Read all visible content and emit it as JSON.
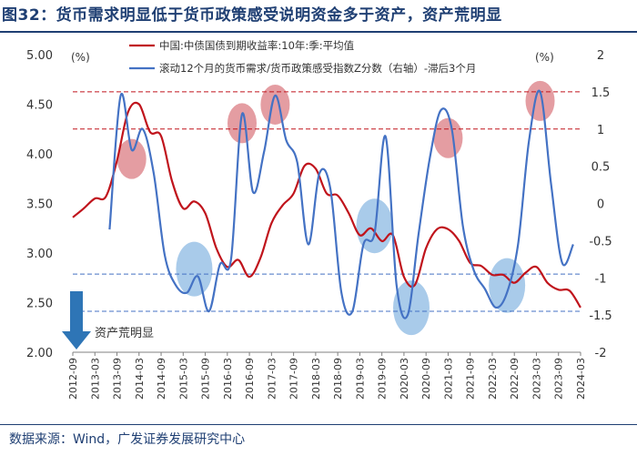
{
  "title": "图32：货币需求明显低于货币政策感受说明资金多于资产，资产荒明显",
  "source": "数据来源：Wind，广发证券发展研究中心",
  "chart_data": {
    "type": "line",
    "unit_left": "(%)",
    "unit_right": "(%)",
    "left_axis": {
      "min": 2.0,
      "max": 5.0,
      "ticks": [
        "2.00",
        "2.50",
        "3.00",
        "3.50",
        "4.00",
        "4.50",
        "5.00"
      ]
    },
    "right_axis": {
      "min": -2,
      "max": 2,
      "ticks": [
        "-2",
        "-1.5",
        "-1",
        "-0.5",
        "0",
        "0.5",
        "1",
        "1.5",
        "2"
      ]
    },
    "x_ticks": [
      "2012-09",
      "2013-03",
      "2013-09",
      "2014-03",
      "2014-09",
      "2015-03",
      "2015-09",
      "2016-03",
      "2016-09",
      "2017-03",
      "2017-09",
      "2018-03",
      "2018-09",
      "2019-03",
      "2019-09",
      "2020-03",
      "2020-09",
      "2021-03",
      "2021-09",
      "2022-03",
      "2022-09",
      "2023-03",
      "2023-09",
      "2024-03"
    ],
    "x_range": [
      "2012-09",
      "2024-03"
    ],
    "annotation": "资产荒明显",
    "reference_lines_right": [
      1.5,
      1.0,
      -0.95,
      -1.45
    ],
    "series": [
      {
        "name": "中国:中债国债到期收益率:10年:季:平均值",
        "axis": "left",
        "color": "#c0141c",
        "points": [
          [
            "2012-09",
            3.36
          ],
          [
            "2012-12",
            3.45
          ],
          [
            "2013-03",
            3.55
          ],
          [
            "2013-06",
            3.57
          ],
          [
            "2013-09",
            3.93
          ],
          [
            "2013-12",
            4.42
          ],
          [
            "2014-03",
            4.5
          ],
          [
            "2014-06",
            4.22
          ],
          [
            "2014-09",
            4.18
          ],
          [
            "2014-12",
            3.72
          ],
          [
            "2015-03",
            3.45
          ],
          [
            "2015-06",
            3.52
          ],
          [
            "2015-09",
            3.4
          ],
          [
            "2015-12",
            3.05
          ],
          [
            "2016-03",
            2.86
          ],
          [
            "2016-06",
            2.93
          ],
          [
            "2016-09",
            2.76
          ],
          [
            "2016-12",
            2.95
          ],
          [
            "2017-03",
            3.3
          ],
          [
            "2017-06",
            3.48
          ],
          [
            "2017-09",
            3.6
          ],
          [
            "2017-12",
            3.88
          ],
          [
            "2018-03",
            3.85
          ],
          [
            "2018-06",
            3.6
          ],
          [
            "2018-09",
            3.58
          ],
          [
            "2018-12",
            3.4
          ],
          [
            "2019-03",
            3.18
          ],
          [
            "2019-06",
            3.25
          ],
          [
            "2019-09",
            3.12
          ],
          [
            "2019-12",
            3.18
          ],
          [
            "2020-03",
            2.76
          ],
          [
            "2020-06",
            2.68
          ],
          [
            "2020-09",
            3.05
          ],
          [
            "2020-12",
            3.24
          ],
          [
            "2021-03",
            3.24
          ],
          [
            "2021-06",
            3.12
          ],
          [
            "2021-09",
            2.9
          ],
          [
            "2021-12",
            2.87
          ],
          [
            "2022-03",
            2.78
          ],
          [
            "2022-06",
            2.78
          ],
          [
            "2022-09",
            2.7
          ],
          [
            "2022-12",
            2.8
          ],
          [
            "2023-03",
            2.86
          ],
          [
            "2023-06",
            2.7
          ],
          [
            "2023-09",
            2.63
          ],
          [
            "2023-12",
            2.62
          ],
          [
            "2024-03",
            2.45
          ]
        ]
      },
      {
        "name": "滚动12个月的货币需求/货币政策感受指数Z分数（右轴）-滞后3个月",
        "axis": "right",
        "color": "#4472c4",
        "points": [
          [
            "2013-07",
            -0.35
          ],
          [
            "2013-10",
            1.45
          ],
          [
            "2014-01",
            0.72
          ],
          [
            "2014-04",
            1.0
          ],
          [
            "2014-07",
            0.4
          ],
          [
            "2014-10",
            -0.7
          ],
          [
            "2015-01",
            -1.1
          ],
          [
            "2015-04",
            -1.2
          ],
          [
            "2015-07",
            -0.98
          ],
          [
            "2015-10",
            -1.45
          ],
          [
            "2016-01",
            -0.82
          ],
          [
            "2016-04",
            -0.75
          ],
          [
            "2016-07",
            1.2
          ],
          [
            "2016-10",
            0.15
          ],
          [
            "2017-01",
            0.7
          ],
          [
            "2017-04",
            1.45
          ],
          [
            "2017-07",
            0.85
          ],
          [
            "2017-10",
            0.55
          ],
          [
            "2018-01",
            -0.55
          ],
          [
            "2018-04",
            0.4
          ],
          [
            "2018-07",
            0.2
          ],
          [
            "2018-10",
            -1.2
          ],
          [
            "2019-01",
            -1.45
          ],
          [
            "2019-04",
            -0.55
          ],
          [
            "2019-07",
            -0.4
          ],
          [
            "2019-10",
            0.9
          ],
          [
            "2020-01",
            -1.1
          ],
          [
            "2020-04",
            -1.5
          ],
          [
            "2020-07",
            -0.4
          ],
          [
            "2020-10",
            0.6
          ],
          [
            "2021-01",
            1.25
          ],
          [
            "2021-04",
            1.0
          ],
          [
            "2021-07",
            -0.3
          ],
          [
            "2021-10",
            -0.9
          ],
          [
            "2022-01",
            -1.15
          ],
          [
            "2022-04",
            -1.4
          ],
          [
            "2022-07",
            -1.2
          ],
          [
            "2022-10",
            -0.55
          ],
          [
            "2023-01",
            0.85
          ],
          [
            "2023-04",
            1.5
          ],
          [
            "2023-07",
            0.25
          ],
          [
            "2023-10",
            -0.8
          ],
          [
            "2024-01",
            -0.55
          ]
        ]
      }
    ],
    "highlight_peaks": [
      "2014-01",
      "2016-07",
      "2017-04",
      "2021-03",
      "2023-04"
    ],
    "highlight_troughs": [
      "2015-06",
      "2019-07",
      "2020-05",
      "2022-07"
    ]
  }
}
